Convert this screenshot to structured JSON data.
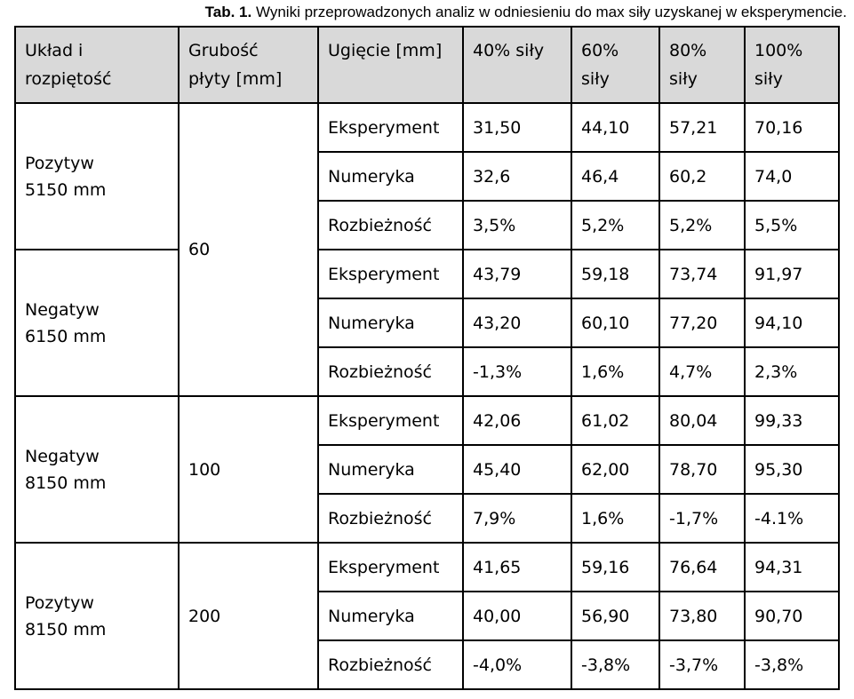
{
  "caption": {
    "label": "Tab. 1.",
    "text": "Wyniki przeprowadzonych analiz w odniesieniu do max siły uzyskanej w eksperymencie."
  },
  "headers": {
    "config": [
      "Układ i",
      "rozpiętość"
    ],
    "thickness": [
      "Grubość",
      "płyty [mm]"
    ],
    "deflection": [
      "Ugięcie [mm]"
    ],
    "f40": [
      "40% siły"
    ],
    "f60": [
      "60%",
      "siły"
    ],
    "f80": [
      "80%",
      "siły"
    ],
    "f100": [
      "100%",
      "siły"
    ]
  },
  "groups": [
    {
      "config": [
        "Pozytyw",
        "5150 mm"
      ],
      "rows": [
        {
          "label": "Eksperyment",
          "values": [
            "31,50",
            "44,10",
            "57,21",
            "70,16"
          ]
        },
        {
          "label": "Numeryka",
          "values": [
            "32,6",
            "46,4",
            "60,2",
            "74,0"
          ]
        },
        {
          "label": "Rozbieżność",
          "values": [
            "3,5%",
            "5,2%",
            "5,2%",
            "5,5%"
          ]
        }
      ]
    },
    {
      "config": [
        "Negatyw",
        "6150 mm"
      ],
      "rows": [
        {
          "label": "Eksperyment",
          "values": [
            "43,79",
            "59,18",
            "73,74",
            "91,97"
          ]
        },
        {
          "label": "Numeryka",
          "values": [
            "43,20",
            "60,10",
            "77,20",
            "94,10"
          ]
        },
        {
          "label": "Rozbieżność",
          "values": [
            "-1,3%",
            "1,6%",
            "4,7%",
            "2,3%"
          ]
        }
      ]
    },
    {
      "config": [
        "Negatyw",
        "8150 mm"
      ],
      "rows": [
        {
          "label": "Eksperyment",
          "values": [
            "42,06",
            "61,02",
            "80,04",
            "99,33"
          ]
        },
        {
          "label": "Numeryka",
          "values": [
            "45,40",
            "62,00",
            "78,70",
            "95,30"
          ]
        },
        {
          "label": "Rozbieżność",
          "values": [
            "7,9%",
            "1,6%",
            "-1,7%",
            "-4.1%"
          ]
        }
      ]
    },
    {
      "config": [
        "Pozytyw",
        "8150 mm"
      ],
      "rows": [
        {
          "label": "Eksperyment",
          "values": [
            "41,65",
            "59,16",
            "76,64",
            "94,31"
          ]
        },
        {
          "label": "Numeryka",
          "values": [
            "40,00",
            "56,90",
            "73,80",
            "90,70"
          ]
        },
        {
          "label": "Rozbieżność",
          "values": [
            "-4,0%",
            "-3,8%",
            "-3,7%",
            "-3,8%"
          ]
        }
      ]
    }
  ],
  "thickness_groups": [
    {
      "value": "60"
    },
    {
      "value": "100"
    },
    {
      "value": "200"
    }
  ]
}
